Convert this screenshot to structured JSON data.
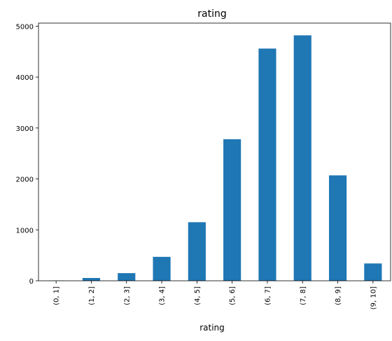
{
  "chart_data": {
    "type": "bar",
    "title": "rating",
    "xlabel": "rating",
    "ylabel": "",
    "categories": [
      "(0, 1]",
      "(1, 2]",
      "(2, 3]",
      "(3, 4]",
      "(4, 5]",
      "(5, 6]",
      "(6, 7]",
      "(7, 8]",
      "(8, 9]",
      "(9, 10]"
    ],
    "values": [
      5,
      55,
      150,
      470,
      1150,
      2780,
      4560,
      4820,
      2070,
      340
    ],
    "ylim": [
      0,
      5060
    ],
    "yticks": [
      0,
      1000,
      2000,
      3000,
      4000,
      5000
    ],
    "yticks_labels": [
      "0",
      "1000",
      "2000",
      "3000",
      "4000",
      "5000"
    ],
    "bar_color": "#1f77b4",
    "grid": false,
    "legend": "none"
  }
}
